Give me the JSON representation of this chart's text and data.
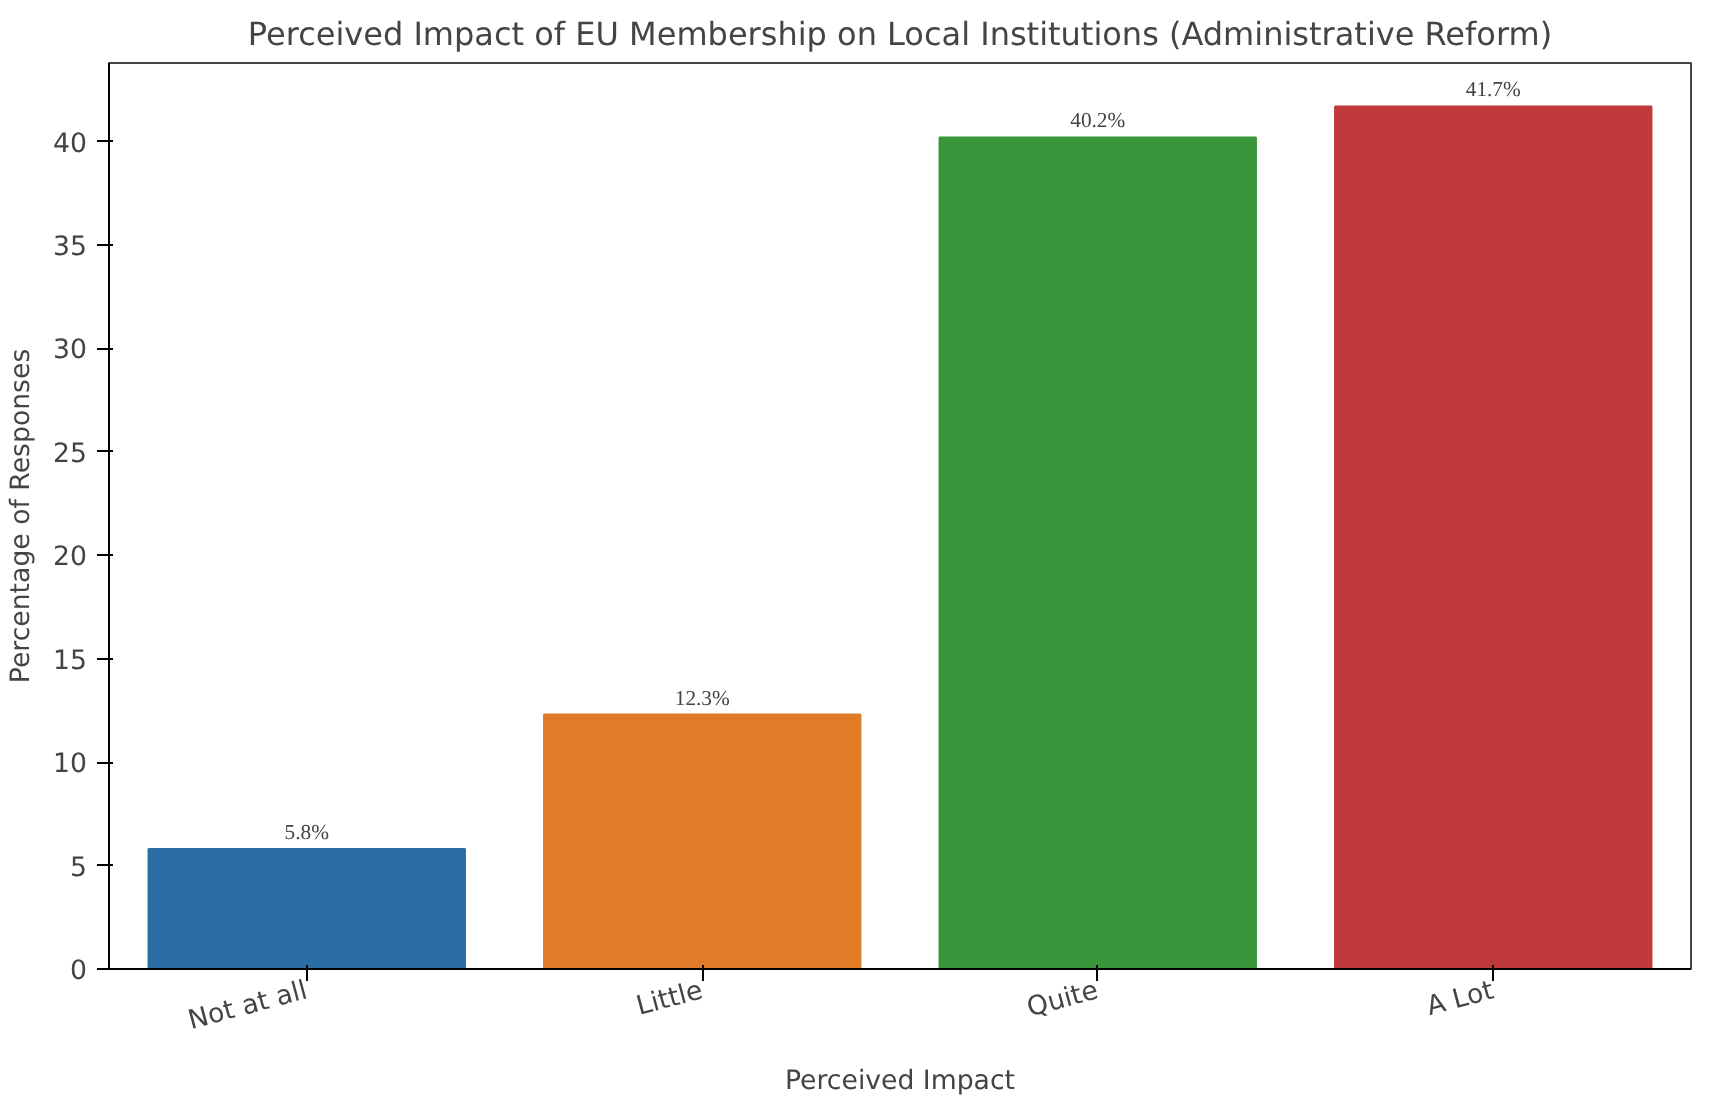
{
  "chart_data": {
    "type": "bar",
    "title": "Perceived Impact of EU Membership on Local Institutions (Administrative Reform)",
    "xlabel": "Perceived Impact",
    "ylabel": "Percentage of Responses",
    "categories": [
      "Not at all",
      "Little",
      "Quite",
      "A Lot"
    ],
    "values": [
      5.8,
      12.3,
      40.2,
      41.7
    ],
    "colors": [
      "#2b6ea6",
      "#e07b28",
      "#3a963a",
      "#c0393b"
    ],
    "value_labels": [
      "5.8%",
      "12.3%",
      "40.2%",
      "41.7%"
    ],
    "ylim": [
      0,
      43.8
    ],
    "yticks": [
      0,
      5,
      10,
      15,
      20,
      25,
      30,
      35,
      40
    ],
    "grid": false
  }
}
